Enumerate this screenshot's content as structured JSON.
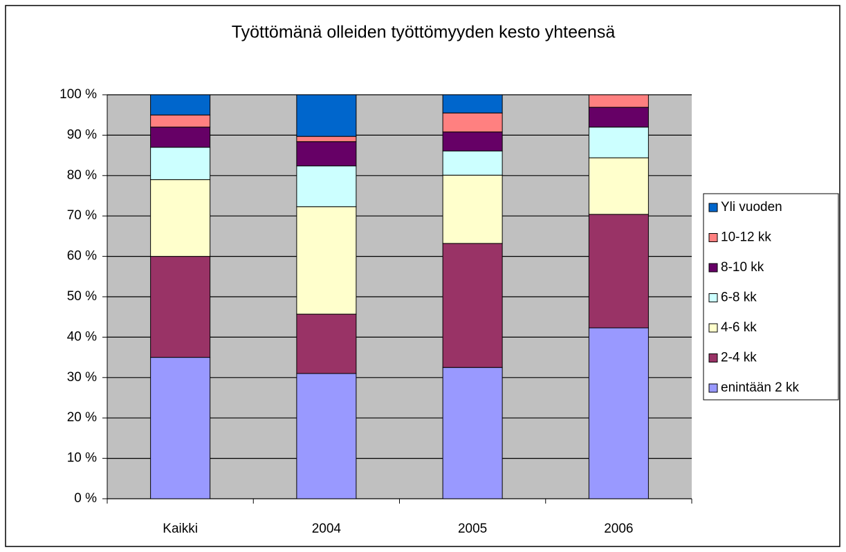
{
  "chart_data": {
    "type": "stacked_bar",
    "title": "Työttömänä olleiden työttömyyden kesto yhteensä",
    "categories": [
      "Kaikki",
      "2004",
      "2005",
      "2006"
    ],
    "series": [
      {
        "name": "enintään 2 kk",
        "color": "#9999ff",
        "values": [
          35,
          31,
          32.5,
          42.3
        ]
      },
      {
        "name": "2-4 kk",
        "color": "#993366",
        "values": [
          25,
          14.7,
          30.7,
          28.1
        ]
      },
      {
        "name": "4-6 kk",
        "color": "#ffffcc",
        "values": [
          19,
          26.6,
          16.9,
          14
        ]
      },
      {
        "name": "6-8 kk",
        "color": "#ccffff",
        "values": [
          8,
          10.1,
          6,
          7.6
        ]
      },
      {
        "name": "8-10 kk",
        "color": "#660066",
        "values": [
          5,
          6,
          4.7,
          4.9
        ]
      },
      {
        "name": "10-12 kk",
        "color": "#ff8080",
        "values": [
          3,
          1.3,
          4.7,
          3.1
        ]
      },
      {
        "name": "Yli vuoden",
        "color": "#0066cc",
        "values": [
          5,
          10.3,
          4.5,
          0
        ]
      }
    ],
    "ylim": [
      0,
      100
    ],
    "yticks": [
      {
        "value": 0,
        "label": "0 %"
      },
      {
        "value": 10,
        "label": "10 %"
      },
      {
        "value": 20,
        "label": "20 %"
      },
      {
        "value": 30,
        "label": "30 %"
      },
      {
        "value": 40,
        "label": "40 %"
      },
      {
        "value": 50,
        "label": "50 %"
      },
      {
        "value": 60,
        "label": "60 %"
      },
      {
        "value": 70,
        "label": "70 %"
      },
      {
        "value": 80,
        "label": "80 %"
      },
      {
        "value": 90,
        "label": "90 %"
      },
      {
        "value": 100,
        "label": "100 %"
      }
    ],
    "grid": true,
    "legend": "right"
  }
}
